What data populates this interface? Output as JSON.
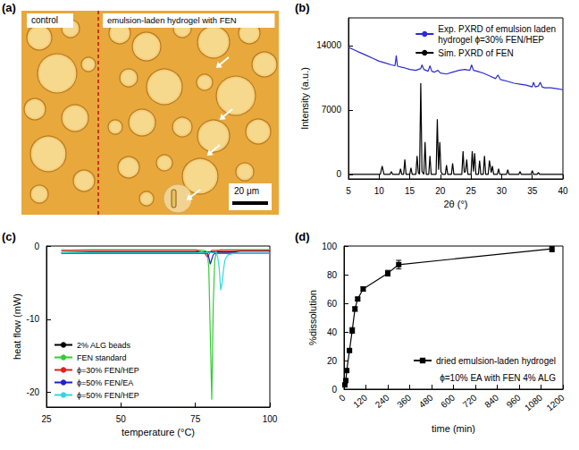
{
  "chart_data": [
    {
      "type": "image",
      "panel": "(a)",
      "texts": [
        "control",
        "emulsion-laden hydrogel with FEN"
      ],
      "scale_bar": "20 μm"
    },
    {
      "type": "line",
      "panel": "(b)",
      "x_label": "2θ (°)",
      "y_label": "Intensity (a.u.)",
      "xlim": [
        5,
        40
      ],
      "xticks": [
        5,
        10,
        15,
        20,
        25,
        30,
        35,
        40
      ],
      "ylim": [
        -500,
        17000
      ],
      "yticks": [
        0,
        7000,
        14000
      ],
      "grid": false,
      "legend": "top-right",
      "series": [
        {
          "name": "Exp. PXRD of emulsion laden hydrogel ϕ=30% FEN/HEP",
          "color": "#2b2bd0",
          "x": [
            5,
            6,
            7,
            8,
            9,
            10,
            11,
            12,
            12.6,
            12.8,
            13,
            14,
            15,
            16,
            16.8,
            17,
            17.3,
            18,
            18.3,
            18.6,
            19,
            19.6,
            20,
            21,
            22,
            23,
            24,
            24.8,
            25.1,
            25.4,
            26,
            27,
            28,
            29,
            29.4,
            29.8,
            31,
            32,
            33,
            34,
            35,
            35.2,
            35.5,
            36,
            36.3,
            36.6,
            37,
            38,
            39,
            40
          ],
          "values": [
            13800,
            13500,
            13200,
            12900,
            12600,
            12300,
            12100,
            11900,
            11800,
            12900,
            11750,
            11600,
            11400,
            11300,
            11500,
            11900,
            11400,
            11200,
            11800,
            11200,
            11100,
            11300,
            11000,
            10900,
            11100,
            11300,
            11400,
            11300,
            11900,
            11300,
            11200,
            11000,
            10700,
            10400,
            10800,
            10300,
            10100,
            9900,
            9800,
            9700,
            9500,
            10000,
            9500,
            9600,
            10000,
            9500,
            9400,
            9400,
            9300,
            9200
          ]
        },
        {
          "name": "Sim. PXRD of FEN",
          "color": "#000000",
          "x": [
            5,
            10.2,
            10.5,
            10.8,
            11.8,
            12,
            12.2,
            13.3,
            13.5,
            13.7,
            14,
            14.2,
            14.4,
            15,
            15.2,
            15.4,
            16,
            16.2,
            16.4,
            16.6,
            16.8,
            17,
            17.3,
            17.5,
            17.7,
            18.1,
            18.3,
            18.5,
            19.3,
            19.5,
            19.7,
            19.9,
            20.1,
            20.3,
            20.8,
            21,
            21.2,
            21.8,
            22,
            22.2,
            23.5,
            23.7,
            23.9,
            24.1,
            24.3,
            24.5,
            25,
            25.2,
            25.4,
            25.6,
            25.8,
            26.2,
            26.4,
            26.6,
            27,
            27.2,
            27.4,
            27.8,
            28,
            28.3,
            28.5,
            28.7,
            29.3,
            29.5,
            29.7,
            30.8,
            31,
            31.2,
            32.8,
            33,
            33.2,
            34.8,
            35,
            35.2,
            35.8,
            36,
            36.2,
            40
          ],
          "values": [
            0,
            0,
            900,
            0,
            0,
            300,
            0,
            0,
            600,
            0,
            0,
            1600,
            0,
            0,
            700,
            0,
            0,
            2000,
            200,
            0,
            9900,
            300,
            0,
            3500,
            0,
            0,
            2000,
            0,
            0,
            6000,
            500,
            3500,
            300,
            0,
            0,
            1000,
            0,
            0,
            1200,
            0,
            0,
            2500,
            200,
            300,
            1600,
            0,
            0,
            2500,
            300,
            2300,
            0,
            0,
            1500,
            0,
            0,
            2000,
            0,
            0,
            1500,
            200,
            900,
            0,
            0,
            600,
            0,
            0,
            500,
            0,
            0,
            300,
            0,
            0,
            400,
            0,
            0,
            200,
            0,
            0
          ]
        }
      ]
    },
    {
      "type": "line",
      "panel": "(c)",
      "x_label": "temperature (°C)",
      "y_label": "heat flow (mW)",
      "xlim": [
        25,
        100
      ],
      "xticks": [
        25,
        50,
        75,
        100
      ],
      "ylim": [
        -22,
        0
      ],
      "yticks": [
        -20,
        -10,
        0
      ],
      "grid": false,
      "legend": "bottom-left",
      "x": [
        30,
        40,
        50,
        60,
        70,
        75,
        78,
        79,
        79.5,
        80,
        80.5,
        81,
        81.5,
        82,
        82.5,
        83,
        83.5,
        84,
        84.5,
        85,
        86,
        88,
        90,
        95,
        100
      ],
      "series": [
        {
          "name": "2% ALG beads",
          "color": "#000000",
          "values": [
            -0.9,
            -0.8,
            -0.8,
            -0.8,
            -0.8,
            -0.8,
            -0.8,
            -0.8,
            -0.8,
            -0.8,
            -0.8,
            -0.8,
            -0.8,
            -0.8,
            -0.8,
            -0.8,
            -0.8,
            -0.8,
            -0.8,
            -0.8,
            -0.8,
            -0.8,
            -0.7,
            -0.7,
            -0.7
          ]
        },
        {
          "name": "FEN standard",
          "color": "#33cc33",
          "values": [
            -0.6,
            -0.5,
            -0.5,
            -0.5,
            -0.5,
            -0.5,
            -0.6,
            -0.8,
            -3,
            -12,
            -21,
            -8,
            -2,
            -0.8,
            -0.6,
            -0.6,
            -0.5,
            -0.5,
            -0.5,
            -0.5,
            -0.5,
            -0.5,
            -0.5,
            -0.5,
            -0.5
          ]
        },
        {
          "name": "ϕ=30% FEN/HEP",
          "color": "#e02020",
          "values": [
            -0.6,
            -0.6,
            -0.6,
            -0.6,
            -0.6,
            -0.6,
            -0.9,
            -1.5,
            -1.2,
            -0.8,
            -0.6,
            -0.6,
            -0.6,
            -0.6,
            -0.6,
            -0.6,
            -0.6,
            -0.6,
            -0.6,
            -0.6,
            -0.6,
            -0.6,
            -0.6,
            -0.6,
            -0.6
          ]
        },
        {
          "name": "ϕ=50% FEN/EA",
          "color": "#2020d0",
          "values": [
            -1.0,
            -1.0,
            -1.0,
            -1.0,
            -1.0,
            -1.0,
            -1.0,
            -1.0,
            -1.5,
            -2.5,
            -1.8,
            -1.2,
            -1.0,
            -1.0,
            -1.0,
            -1.0,
            -1.0,
            -1.0,
            -1.0,
            -1.0,
            -1.0,
            -1.0,
            -1.0,
            -1.0,
            -1.0
          ]
        },
        {
          "name": "ϕ=50% FEN/HEP",
          "color": "#33d6e0",
          "values": [
            -0.9,
            -0.9,
            -0.9,
            -0.9,
            -0.9,
            -0.9,
            -0.9,
            -0.9,
            -0.9,
            -0.9,
            -0.9,
            -0.9,
            -0.9,
            -0.9,
            -1.5,
            -3,
            -6,
            -5,
            -3,
            -1.8,
            -1.2,
            -1.0,
            -1.0,
            -1.0,
            -1.0
          ]
        }
      ]
    },
    {
      "type": "line",
      "panel": "(d)",
      "x_label": "time (min)",
      "y_label": "%dissolution",
      "xlim": [
        0,
        1200
      ],
      "xticks": [
        0,
        120,
        240,
        360,
        480,
        600,
        720,
        840,
        960,
        1080,
        1200
      ],
      "ylim": [
        0,
        100
      ],
      "yticks": [
        0,
        20,
        40,
        60,
        80,
        100
      ],
      "grid": false,
      "legend": "bottom-right",
      "annotations": [
        "ϕ=10% EA with FEN 4% ALG"
      ],
      "series": [
        {
          "name": "dried emulsion-laden hydrogel",
          "color": "#000000",
          "marker": "square",
          "line_style": "solid",
          "x": [
            5,
            10,
            15,
            30,
            45,
            60,
            75,
            105,
            240,
            300,
            1140
          ],
          "values": [
            3,
            6,
            13,
            27,
            41,
            56,
            63,
            70,
            81,
            87,
            98
          ],
          "errors": [
            1,
            1,
            1,
            1,
            2,
            1.5,
            1,
            1.5,
            2,
            3,
            2
          ]
        }
      ]
    }
  ]
}
